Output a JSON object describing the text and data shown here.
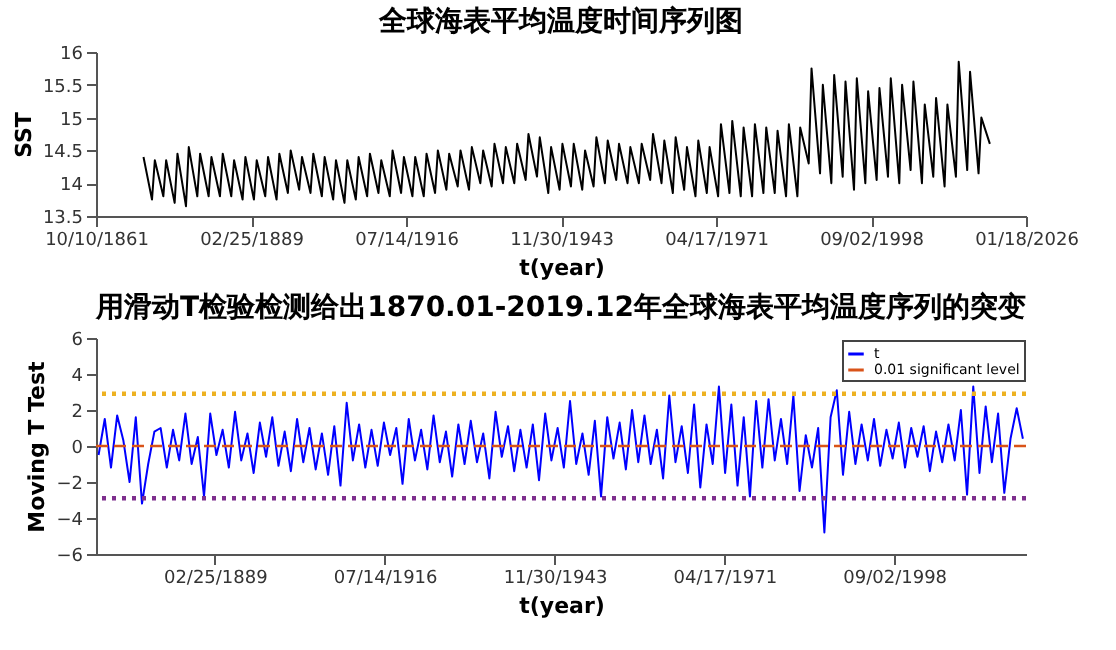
{
  "chart_data": [
    {
      "type": "line",
      "title": "全球海表平均温度时间序列图",
      "xlabel": "t(year)",
      "ylabel": "SST",
      "grid": false,
      "legend": false,
      "xlim": [
        "1861-10-10",
        "2026-01-18"
      ],
      "xticks": [
        {
          "value": "1861-10-10",
          "label": "10/10/1861"
        },
        {
          "value": "1889-02-25",
          "label": "02/25/1889"
        },
        {
          "value": "1916-07-14",
          "label": "07/14/1916"
        },
        {
          "value": "1943-11-30",
          "label": "11/30/1943"
        },
        {
          "value": "1971-04-17",
          "label": "04/17/1971"
        },
        {
          "value": "1998-09-02",
          "label": "09/02/1998"
        },
        {
          "value": "2026-01-18",
          "label": "01/18/2026"
        }
      ],
      "ylim": [
        13.5,
        16
      ],
      "yticks": [
        13.5,
        14,
        14.5,
        15,
        15.5,
        16
      ],
      "series": [
        {
          "color": "#000000",
          "values": [
            14.4,
            13.75,
            14.35,
            13.8,
            14.35,
            13.7,
            14.45,
            13.65,
            14.55,
            13.8,
            14.45,
            13.8,
            14.4,
            13.8,
            14.45,
            13.8,
            14.35,
            13.75,
            14.4,
            13.75,
            14.35,
            13.8,
            14.4,
            13.75,
            14.45,
            13.85,
            14.5,
            13.9,
            14.4,
            13.85,
            14.45,
            13.8,
            14.4,
            13.75,
            14.35,
            13.7,
            14.35,
            13.75,
            14.4,
            13.8,
            14.45,
            13.85,
            14.35,
            13.8,
            14.5,
            13.85,
            14.4,
            13.8,
            14.4,
            13.8,
            14.45,
            13.85,
            14.5,
            13.9,
            14.45,
            13.95,
            14.5,
            13.9,
            14.55,
            14.0,
            14.5,
            13.95,
            14.6,
            14.0,
            14.55,
            14.0,
            14.6,
            14.05,
            14.75,
            14.1,
            14.7,
            13.85,
            14.55,
            13.9,
            14.6,
            13.95,
            14.6,
            13.9,
            14.5,
            13.95,
            14.7,
            14.0,
            14.65,
            14.05,
            14.6,
            14.0,
            14.55,
            14.0,
            14.6,
            14.05,
            14.75,
            14.0,
            14.65,
            13.85,
            14.7,
            13.9,
            14.55,
            13.8,
            14.65,
            13.85,
            14.55,
            13.8,
            14.9,
            13.85,
            14.95,
            13.8,
            14.85,
            13.8,
            14.9,
            13.85,
            14.85,
            13.85,
            14.8,
            13.8,
            14.9,
            13.8,
            14.85,
            14.3,
            15.75,
            14.15,
            15.5,
            14.0,
            15.65,
            14.1,
            15.55,
            13.9,
            15.6,
            14.0,
            15.4,
            14.05,
            15.45,
            14.1,
            15.6,
            14.0,
            15.5,
            14.2,
            15.55,
            14.0,
            15.2,
            14.1,
            15.3,
            13.95,
            15.2,
            14.1,
            15.85,
            14.2,
            15.7,
            14.15,
            15.0,
            14.6
          ],
          "x": [
            "1870-03",
            "1871-09",
            "1872-03",
            "1873-09",
            "1874-03",
            "1875-09",
            "1876-03",
            "1877-09",
            "1878-03",
            "1879-09",
            "1880-03",
            "1881-09",
            "1882-03",
            "1883-09",
            "1884-03",
            "1885-09",
            "1886-03",
            "1887-09",
            "1888-03",
            "1889-09",
            "1890-03",
            "1891-09",
            "1892-03",
            "1893-09",
            "1894-03",
            "1895-09",
            "1896-03",
            "1897-09",
            "1898-03",
            "1899-09",
            "1900-03",
            "1901-09",
            "1902-03",
            "1903-09",
            "1904-03",
            "1905-09",
            "1906-03",
            "1907-09",
            "1908-03",
            "1909-09",
            "1910-03",
            "1911-09",
            "1912-03",
            "1913-09",
            "1914-03",
            "1915-09",
            "1916-03",
            "1917-09",
            "1918-03",
            "1919-09",
            "1920-03",
            "1921-09",
            "1922-03",
            "1923-09",
            "1924-03",
            "1925-09",
            "1926-03",
            "1927-09",
            "1928-03",
            "1929-09",
            "1930-03",
            "1931-09",
            "1932-03",
            "1933-09",
            "1934-03",
            "1935-09",
            "1936-03",
            "1937-09",
            "1938-03",
            "1939-09",
            "1940-03",
            "1941-09",
            "1942-03",
            "1943-09",
            "1944-03",
            "1945-09",
            "1946-03",
            "1947-09",
            "1948-03",
            "1949-09",
            "1950-03",
            "1951-09",
            "1952-03",
            "1953-09",
            "1954-03",
            "1955-09",
            "1956-03",
            "1957-09",
            "1958-03",
            "1959-09",
            "1960-03",
            "1961-09",
            "1962-03",
            "1963-09",
            "1964-03",
            "1965-09",
            "1966-03",
            "1967-09",
            "1968-03",
            "1969-09",
            "1970-03",
            "1971-09",
            "1972-03",
            "1973-09",
            "1974-03",
            "1975-09",
            "1976-03",
            "1977-09",
            "1978-03",
            "1979-09",
            "1980-03",
            "1981-09",
            "1982-03",
            "1983-09",
            "1984-03",
            "1985-09",
            "1986-03",
            "1987-09",
            "1988-03",
            "1989-09",
            "1990-03",
            "1991-09",
            "1992-03",
            "1993-09",
            "1994-03",
            "1995-09",
            "1996-03",
            "1997-09",
            "1998-03",
            "1999-09",
            "2000-03",
            "2001-09",
            "2002-03",
            "2003-09",
            "2004-03",
            "2005-09",
            "2006-03",
            "2007-09",
            "2008-03",
            "2009-09",
            "2010-03",
            "2011-09",
            "2012-03",
            "2013-09",
            "2014-03",
            "2015-09",
            "2016-03",
            "2017-09",
            "2018-03",
            "2019-09"
          ]
        }
      ]
    },
    {
      "type": "line",
      "title": "用滑动T检验检测给出1870.01-2019.12年全球海表平均温度序列的突变",
      "xlabel": "t(year)",
      "ylabel": "Moving T Test",
      "grid": false,
      "legend": "top right",
      "xlim": [
        "1870-01-01",
        "2019-12-01"
      ],
      "xticks": [
        {
          "value": "1889-02-25",
          "label": "02/25/1889"
        },
        {
          "value": "1916-07-14",
          "label": "07/14/1916"
        },
        {
          "value": "1943-11-30",
          "label": "11/30/1943"
        },
        {
          "value": "1971-04-17",
          "label": "04/17/1971"
        },
        {
          "value": "1998-09-02",
          "label": "09/02/1998"
        }
      ],
      "ylim": [
        -6,
        6
      ],
      "yticks": [
        -6,
        -4,
        -2,
        0,
        2,
        4,
        6
      ],
      "ref_lines": [
        {
          "axis": "y",
          "value": 0,
          "label": "0.01 significant level",
          "color": "#d95319",
          "line_style": "dashed"
        },
        {
          "axis": "y",
          "value": 2.9,
          "color": "#edb120",
          "line_style": "dotted"
        },
        {
          "axis": "y",
          "value": -2.9,
          "color": "#7e2f8e",
          "line_style": "dotted"
        }
      ],
      "series": [
        {
          "name": "t",
          "color": "#0000ff",
          "values": [
            -0.5,
            1.5,
            -1.2,
            1.7,
            0.3,
            -2.0,
            1.6,
            -3.2,
            -1.0,
            0.8,
            1.0,
            -1.2,
            0.9,
            -0.8,
            1.8,
            -1.0,
            0.5,
            -2.8,
            1.8,
            -0.5,
            0.9,
            -1.2,
            1.9,
            -0.8,
            0.7,
            -1.5,
            1.3,
            -0.6,
            1.6,
            -1.1,
            0.8,
            -1.4,
            1.5,
            -0.9,
            1.0,
            -1.3,
            0.7,
            -1.6,
            1.1,
            -2.2,
            2.4,
            -0.8,
            1.2,
            -1.2,
            0.9,
            -1.1,
            1.3,
            -0.5,
            1.0,
            -2.1,
            1.5,
            -0.8,
            0.9,
            -1.3,
            1.7,
            -0.9,
            0.8,
            -1.7,
            1.2,
            -1.0,
            1.4,
            -0.9,
            0.7,
            -1.8,
            1.9,
            -0.6,
            1.1,
            -1.4,
            0.9,
            -1.2,
            1.2,
            -1.9,
            1.8,
            -0.8,
            1.0,
            -1.2,
            2.5,
            -1.0,
            0.7,
            -1.6,
            1.4,
            -2.8,
            1.6,
            -0.7,
            1.3,
            -1.3,
            2.0,
            -0.9,
            1.7,
            -1.0,
            0.9,
            -1.8,
            2.8,
            -0.9,
            1.1,
            -1.5,
            2.3,
            -2.3,
            1.2,
            -1.0,
            3.3,
            -1.5,
            2.3,
            -2.2,
            1.6,
            -2.8,
            2.5,
            -1.2,
            2.6,
            -0.8,
            1.5,
            -1.0,
            2.8,
            -2.5,
            0.6,
            -1.2,
            1.0,
            -4.8,
            1.6,
            3.1,
            -1.6,
            1.9,
            -1.0,
            1.2,
            -0.8,
            1.5,
            -1.1,
            0.9,
            -0.7,
            1.3,
            -1.2,
            1.0,
            -0.6,
            1.1,
            -1.4,
            0.8,
            -0.9,
            1.2,
            -0.8,
            2.0,
            -2.7,
            3.3,
            -1.5,
            2.2,
            -0.9,
            1.8,
            -2.6,
            0.4,
            2.1,
            0.4
          ],
          "x": [
            "1870-06",
            "1871-06",
            "1872-06",
            "1873-06",
            "1874-06",
            "1875-06",
            "1876-06",
            "1877-06",
            "1878-06",
            "1879-06",
            "1880-06",
            "1881-06",
            "1882-06",
            "1883-06",
            "1884-06",
            "1885-06",
            "1886-06",
            "1887-06",
            "1888-06",
            "1889-06",
            "1890-06",
            "1891-06",
            "1892-06",
            "1893-06",
            "1894-06",
            "1895-06",
            "1896-06",
            "1897-06",
            "1898-06",
            "1899-06",
            "1900-06",
            "1901-06",
            "1902-06",
            "1903-06",
            "1904-06",
            "1905-06",
            "1906-06",
            "1907-06",
            "1908-06",
            "1909-06",
            "1910-06",
            "1911-06",
            "1912-06",
            "1913-06",
            "1914-06",
            "1915-06",
            "1916-06",
            "1917-06",
            "1918-06",
            "1919-06",
            "1920-06",
            "1921-06",
            "1922-06",
            "1923-06",
            "1924-06",
            "1925-06",
            "1926-06",
            "1927-06",
            "1928-06",
            "1929-06",
            "1930-06",
            "1931-06",
            "1932-06",
            "1933-06",
            "1934-06",
            "1935-06",
            "1936-06",
            "1937-06",
            "1938-06",
            "1939-06",
            "1940-06",
            "1941-06",
            "1942-06",
            "1943-06",
            "1944-06",
            "1945-06",
            "1946-06",
            "1947-06",
            "1948-06",
            "1949-06",
            "1950-06",
            "1951-06",
            "1952-06",
            "1953-06",
            "1954-06",
            "1955-06",
            "1956-06",
            "1957-06",
            "1958-06",
            "1959-06",
            "1960-06",
            "1961-06",
            "1962-06",
            "1963-06",
            "1964-06",
            "1965-06",
            "1966-06",
            "1967-06",
            "1968-06",
            "1969-06",
            "1970-06",
            "1971-06",
            "1972-06",
            "1973-06",
            "1974-06",
            "1975-06",
            "1976-06",
            "1977-06",
            "1978-06",
            "1979-06",
            "1980-06",
            "1981-06",
            "1982-06",
            "1983-06",
            "1984-06",
            "1985-06",
            "1986-06",
            "1987-06",
            "1988-06",
            "1989-06",
            "1990-06",
            "1991-06",
            "1992-06",
            "1993-06",
            "1994-06",
            "1995-06",
            "1996-06",
            "1997-06",
            "1998-06",
            "1999-06",
            "2000-06",
            "2001-06",
            "2002-06",
            "2003-06",
            "2004-06",
            "2005-06",
            "2006-06",
            "2007-06",
            "2008-06",
            "2009-06",
            "2010-06",
            "2011-06",
            "2012-06",
            "2013-06",
            "2014-06",
            "2015-06",
            "2016-06",
            "2017-06",
            "2018-06",
            "2019-06"
          ]
        }
      ]
    }
  ]
}
